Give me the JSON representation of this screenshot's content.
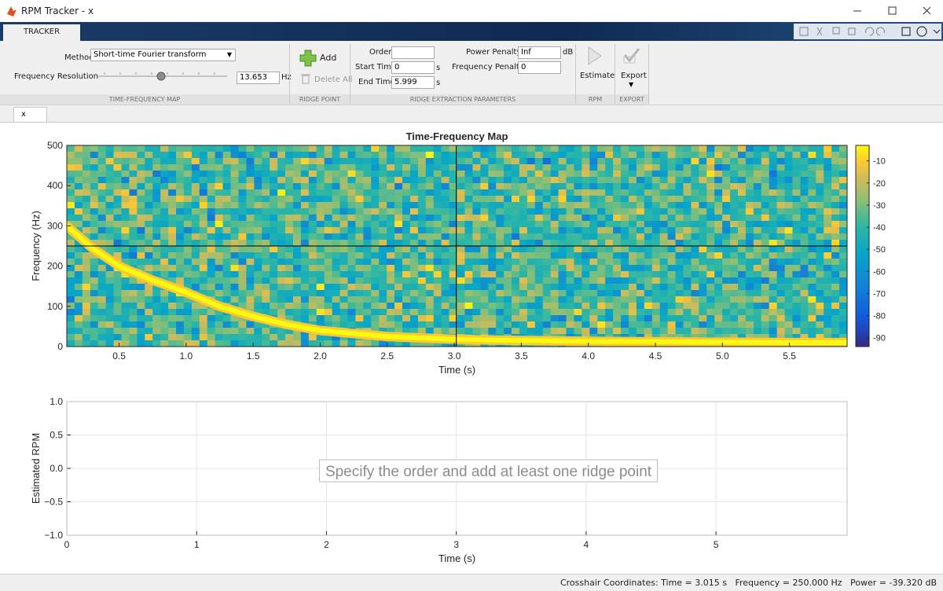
{
  "window": {
    "title": "RPM Tracker - x"
  },
  "toolstrip": {
    "tab": "TRACKER",
    "method_label": "Method",
    "method_value": "Short-time Fourier transform",
    "resolution_label": "Frequency Resolution",
    "resolution_value": "13.653",
    "resolution_unit": "Hz",
    "add": "Add",
    "delete_all": "Delete All",
    "order_label": "Order",
    "start_label": "Start Time",
    "start_value": "0",
    "start_unit": "s",
    "end_label": "End Time",
    "end_value": "5.999",
    "end_unit": "s",
    "power_label": "Power Penalty",
    "power_value": "Inf",
    "power_unit": "dB",
    "freq_penalty_label": "Frequency Penalty",
    "freq_penalty_value": "0",
    "estimate": "Estimate",
    "export": "Export",
    "sections": [
      "TIME-FREQUENCY MAP",
      "RIDGE POINT",
      "RIDGE EXTRACTION PARAMETERS",
      "RPM",
      "EXPORT"
    ]
  },
  "document_tab": "x",
  "chart_data": [
    {
      "type": "heatmap",
      "title": "Time-Frequency Map",
      "xlabel": "Time (s)",
      "ylabel": "Frequency (Hz)",
      "xlim": [
        0.11,
        5.93
      ],
      "xticks": [
        0.5,
        {
          "value": 1,
          "label": "1.0"
        },
        1.5,
        {
          "value": 2,
          "label": "2.0"
        },
        2.5,
        {
          "value": 3,
          "label": "3.0"
        },
        3.5,
        {
          "value": 4,
          "label": "4.0"
        },
        4.5,
        {
          "value": 5,
          "label": "5.0"
        },
        5.5
      ],
      "ylim": [
        0,
        500
      ],
      "yticks": [
        0,
        100,
        200,
        300,
        400,
        500
      ],
      "clim": [
        -94,
        -3
      ],
      "cticks": [
        -10,
        -20,
        -30,
        -40,
        -50,
        -60,
        -70,
        -80,
        -90
      ],
      "crosshair": {
        "x": 3.015,
        "y": 250
      },
      "ridge": {
        "x": [
          0.11,
          0.3,
          0.5,
          0.75,
          1.0,
          1.25,
          1.5,
          1.75,
          2.0,
          2.5,
          3.0,
          3.5,
          4.0,
          4.5,
          5.0,
          5.5,
          5.93
        ],
        "values": [
          300,
          245,
          200,
          165,
          135,
          100,
          75,
          55,
          40,
          25,
          18,
          15,
          13,
          12,
          11,
          10,
          10
        ]
      }
    },
    {
      "type": "line",
      "xlabel": "Time (s)",
      "ylabel": "Estimated RPM",
      "xlim": [
        0,
        6.01
      ],
      "xticks": [
        0,
        1,
        2,
        3,
        4,
        5
      ],
      "ylim": [
        -1,
        1
      ],
      "yticks": [
        {
          "value": -1,
          "label": "−1.0"
        },
        {
          "value": -0.5,
          "label": "−0.5"
        },
        {
          "value": 0,
          "label": "0.0"
        },
        {
          "value": 0.5,
          "label": "0.5"
        },
        {
          "value": 1,
          "label": "1.0"
        }
      ],
      "grid": true,
      "message": "Specify the order and add at least one ridge point"
    }
  ],
  "status": "Crosshair Coordinates: Time = 3.015 s   Frequency = 250.000 Hz   Power = -39.320 dB"
}
